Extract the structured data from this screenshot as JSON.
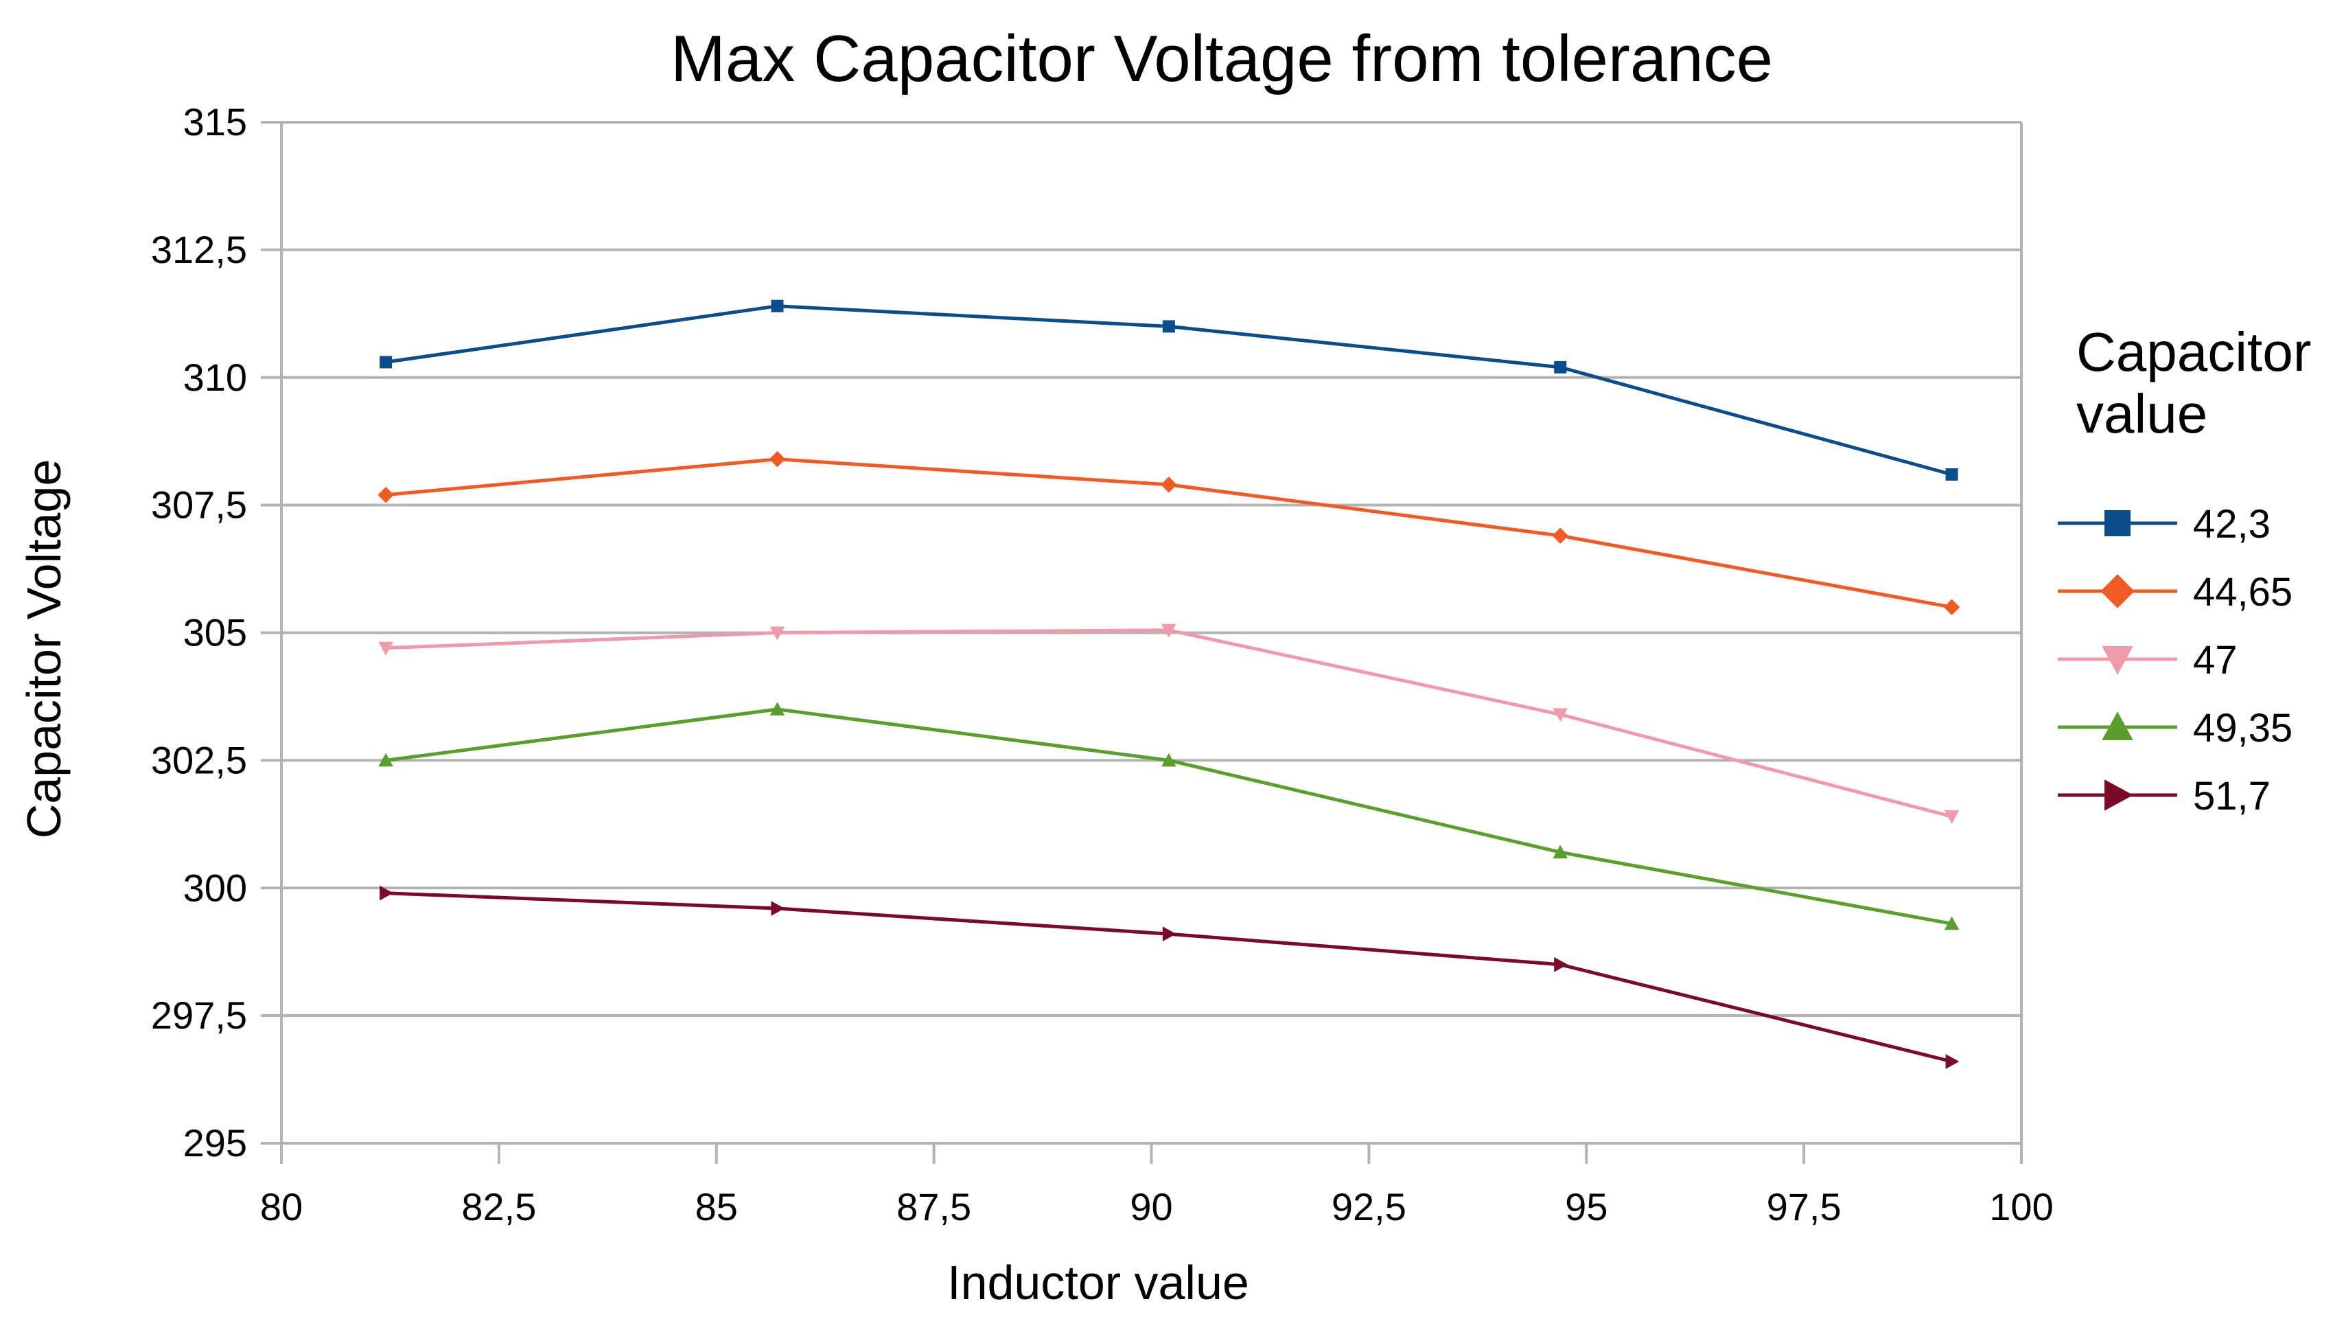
{
  "chart_data": {
    "type": "line",
    "title": "Max Capacitor Voltage from tolerance",
    "xlabel": "Inductor value",
    "ylabel": "Capacitor Voltage",
    "xlim": [
      80,
      100
    ],
    "ylim": [
      295,
      315
    ],
    "xticks": [
      "80",
      "82,5",
      "85",
      "87,5",
      "90",
      "92,5",
      "95",
      "97,5",
      "100"
    ],
    "yticks": [
      "295",
      "297,5",
      "300",
      "302,5",
      "305",
      "307,5",
      "310",
      "312,5",
      "315"
    ],
    "xtick_values": [
      80,
      82.5,
      85,
      87.5,
      90,
      92.5,
      95,
      97.5,
      100
    ],
    "ytick_values": [
      295,
      297.5,
      300,
      302.5,
      305,
      307.5,
      310,
      312.5,
      315
    ],
    "grid": "horizontal",
    "legend_title": "Capacitor value",
    "legend_title_lines": [
      "Capacitor",
      "value"
    ],
    "legend_position": "right",
    "x": [
      81.2,
      85.7,
      90.2,
      94.7,
      99.2
    ],
    "series": [
      {
        "name": "42,3",
        "color": "#0b4c8b",
        "marker": "square",
        "values": [
          310.3,
          311.4,
          311.0,
          310.2,
          308.1
        ]
      },
      {
        "name": "44,65",
        "color": "#f15a22",
        "marker": "diamond",
        "values": [
          307.7,
          308.4,
          307.9,
          306.9,
          305.5
        ]
      },
      {
        "name": "47",
        "color": "#ef9aa8",
        "marker": "triangle-down",
        "values": [
          304.7,
          305.0,
          305.05,
          303.4,
          301.4
        ]
      },
      {
        "name": "49,35",
        "color": "#5b9e2d",
        "marker": "triangle-up",
        "values": [
          302.5,
          303.5,
          302.5,
          300.7,
          299.3
        ]
      },
      {
        "name": "51,7",
        "color": "#7a0a28",
        "marker": "triangle-right",
        "values": [
          299.9,
          299.6,
          299.1,
          298.5,
          296.6
        ]
      }
    ]
  }
}
